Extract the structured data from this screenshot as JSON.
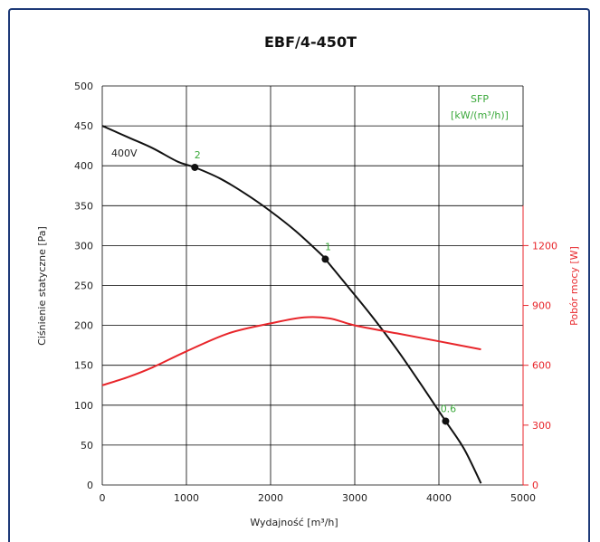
{
  "chart_data": {
    "type": "line",
    "title": "EBF/4-450T",
    "xlabel": "Wydajność [m³/h]",
    "ylabel": "Ciśnienie statyczne [Pa]",
    "y2label": "Pobór mocy [W]",
    "xlim": [
      0,
      5000
    ],
    "ylim": [
      0,
      500
    ],
    "y2lim": [
      0,
      2000
    ],
    "x_ticks": [
      "0",
      "1000",
      "2000",
      "3000",
      "4000",
      "5000"
    ],
    "y_ticks": [
      "0",
      "50",
      "100",
      "150",
      "200",
      "250",
      "300",
      "350",
      "400",
      "450",
      "500"
    ],
    "y2_ticks": [
      "0",
      "300",
      "600",
      "900",
      "1200"
    ],
    "grid": true,
    "curve_label": "400V",
    "sfp_header": [
      "SFP",
      "[kW/(m³/h)]"
    ],
    "series": [
      {
        "color": "#111111",
        "axis": "left",
        "x": [
          0,
          300,
          600,
          900,
          1100,
          1400,
          1700,
          2000,
          2300,
          2600,
          2650,
          2900,
          3200,
          3500,
          3800,
          4080,
          4300,
          4500
        ],
        "y": [
          450,
          436,
          422,
          405,
          398,
          384,
          365,
          343,
          318,
          289,
          283,
          251,
          212,
          170,
          124,
          80,
          45,
          2
        ]
      },
      {
        "color": "#e8262b",
        "axis": "right",
        "x": [
          0,
          300,
          600,
          1000,
          1500,
          2000,
          2400,
          2700,
          3000,
          3500,
          4000,
          4500
        ],
        "y": [
          500,
          540,
          590,
          670,
          760,
          810,
          840,
          835,
          800,
          760,
          720,
          680
        ]
      }
    ],
    "sfp_points": [
      {
        "x": 1100,
        "y": 398,
        "label": "2"
      },
      {
        "x": 2650,
        "y": 283,
        "label": "1"
      },
      {
        "x": 4080,
        "y": 80,
        "label": "0.6"
      }
    ]
  }
}
